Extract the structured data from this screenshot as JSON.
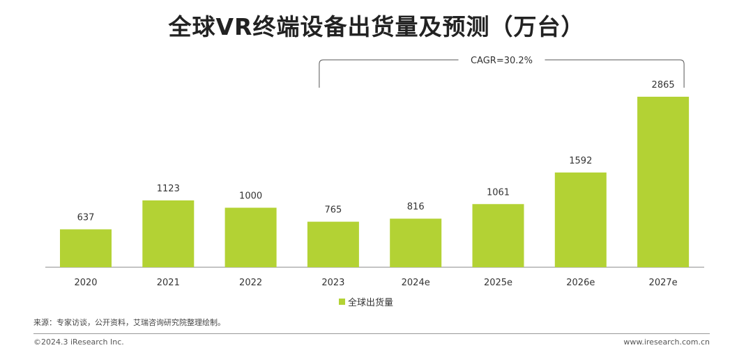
{
  "chart_data": {
    "type": "bar",
    "title": "全球VR终端设备出货量及预测（万台）",
    "categories": [
      "2020",
      "2021",
      "2022",
      "2023",
      "2024e",
      "2025e",
      "2026e",
      "2027e"
    ],
    "series": [
      {
        "name": "全球出货量",
        "values": [
          637,
          1123,
          1000,
          765,
          816,
          1061,
          1592,
          2865
        ]
      }
    ],
    "ylim": [
      0,
      2865
    ],
    "grid": false,
    "legend": "bottom",
    "annotation": "CAGR=30.2%",
    "bar_color": "#b3d234",
    "axis_color": "#888888"
  },
  "source": "来源：专家访谈，公开资料，艾瑞咨询研究院整理绘制。",
  "footer": {
    "copyright": "©2024.3 iResearch Inc.",
    "website": "www.iresearch.com.cn"
  }
}
